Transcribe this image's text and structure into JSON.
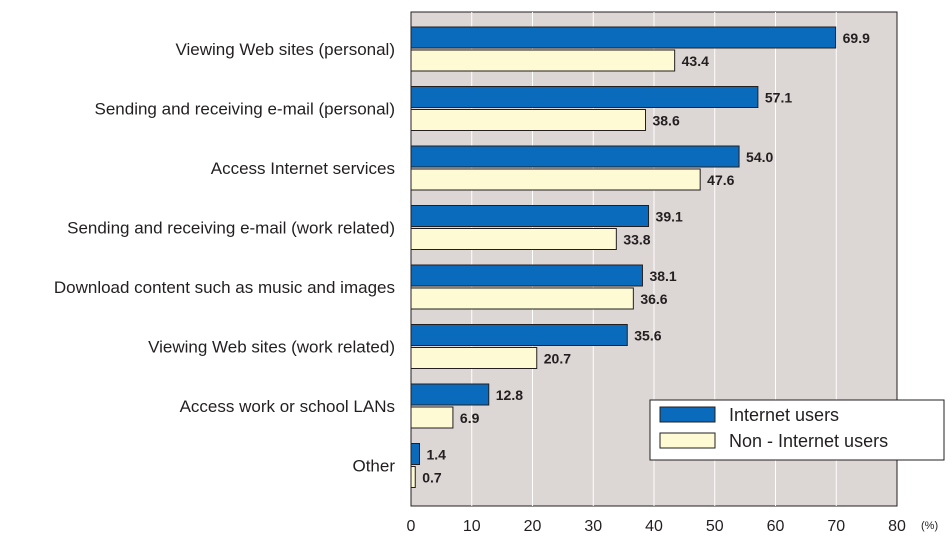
{
  "chart_data": {
    "type": "bar",
    "orientation": "horizontal",
    "categories": [
      "Viewing Web sites (personal)",
      "Sending and receiving e-mail (personal)",
      "Access Internet services",
      "Sending and receiving e-mail (work related)",
      "Download content such as music and images",
      "Viewing Web sites (work related)",
      "Access work or school LANs",
      "Other"
    ],
    "series": [
      {
        "name": "Internet users",
        "color": "#0a6bbd",
        "values": [
          69.9,
          57.1,
          54.0,
          39.1,
          38.1,
          35.6,
          12.8,
          1.4
        ],
        "labels": [
          "69.9",
          "57.1",
          "54.0",
          "39.1",
          "38.1",
          "35.6",
          "12.8",
          "1.4"
        ]
      },
      {
        "name": "Non - Internet users",
        "color": "#fdfad4",
        "values": [
          43.4,
          38.6,
          47.6,
          33.8,
          36.6,
          20.7,
          6.9,
          0.7
        ],
        "labels": [
          "43.4",
          "38.6",
          "47.6",
          "33.8",
          "36.6",
          "20.7",
          "6.9",
          "0.7"
        ]
      }
    ],
    "xlim": [
      0,
      80
    ],
    "xticks": [
      "0",
      "10",
      "20",
      "30",
      "40",
      "50",
      "60",
      "70",
      "80"
    ],
    "xunit": "(%)",
    "grid": true,
    "plot_background": "#dcd6d4",
    "legend_position": "bottom-right"
  }
}
